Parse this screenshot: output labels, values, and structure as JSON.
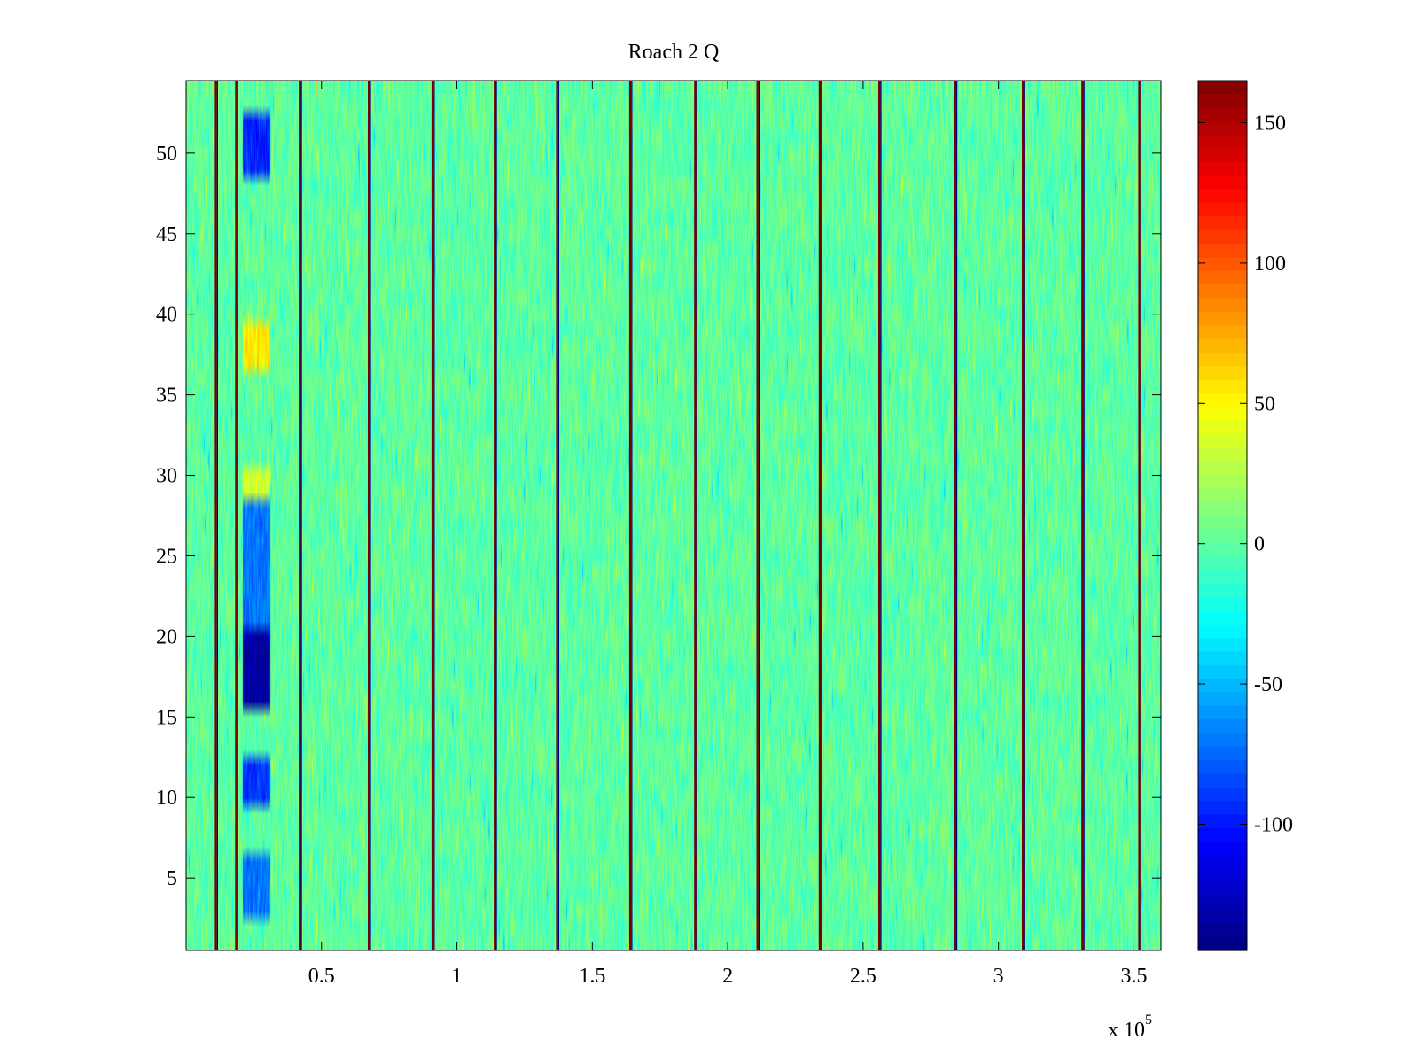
{
  "chart_data": {
    "type": "heatmap",
    "title": "Roach 2 Q",
    "xlabel": "",
    "ylabel": "",
    "x_exponent_label": "x 10",
    "x_exponent_power": "5",
    "xlim": [
      0.5,
      360000
    ],
    "ylim": [
      0.5,
      54.5
    ],
    "rows": 54,
    "background_value": 0,
    "x_ticks": [
      {
        "value": 50000,
        "label": "0.5"
      },
      {
        "value": 100000,
        "label": "1"
      },
      {
        "value": 150000,
        "label": "1.5"
      },
      {
        "value": 200000,
        "label": "2"
      },
      {
        "value": 250000,
        "label": "2.5"
      },
      {
        "value": 300000,
        "label": "3"
      },
      {
        "value": 350000,
        "label": "3.5"
      }
    ],
    "y_ticks": [
      {
        "value": 5,
        "label": "5"
      },
      {
        "value": 10,
        "label": "10"
      },
      {
        "value": 15,
        "label": "15"
      },
      {
        "value": 20,
        "label": "20"
      },
      {
        "value": 25,
        "label": "25"
      },
      {
        "value": 30,
        "label": "30"
      },
      {
        "value": 35,
        "label": "35"
      },
      {
        "value": 40,
        "label": "40"
      },
      {
        "value": 45,
        "label": "45"
      },
      {
        "value": 50,
        "label": "50"
      }
    ],
    "colorbar": {
      "colormap": "jet",
      "clim": [
        -145,
        165
      ],
      "ticks": [
        {
          "value": -100,
          "label": "-100"
        },
        {
          "value": -50,
          "label": "-50"
        },
        {
          "value": 0,
          "label": "0"
        },
        {
          "value": 50,
          "label": "50"
        },
        {
          "value": 100,
          "label": "100"
        },
        {
          "value": 150,
          "label": "150"
        }
      ]
    },
    "spike_columns_x": [
      11000,
      18500,
      42000,
      67500,
      91000,
      114000,
      137000,
      164000,
      188000,
      211000,
      234000,
      256000,
      284000,
      309000,
      331000,
      352000
    ],
    "anomaly_blocks": [
      {
        "x_start": 21000,
        "x_end": 31000,
        "y_start": 49,
        "y_end": 52,
        "value": -95
      },
      {
        "x_start": 21000,
        "x_end": 31000,
        "y_start": 10,
        "y_end": 12,
        "value": -90
      },
      {
        "x_start": 21000,
        "x_end": 31000,
        "y_start": 16,
        "y_end": 20,
        "value": -135
      },
      {
        "x_start": 21000,
        "x_end": 31000,
        "y_start": 21,
        "y_end": 28,
        "value": -70
      },
      {
        "x_start": 21000,
        "x_end": 31000,
        "y_start": 3,
        "y_end": 6,
        "value": -70
      },
      {
        "x_start": 21000,
        "x_end": 31000,
        "y_start": 37,
        "y_end": 39,
        "value": 55
      },
      {
        "x_start": 21000,
        "x_end": 31000,
        "y_start": 29,
        "y_end": 30,
        "value": 35
      }
    ]
  }
}
